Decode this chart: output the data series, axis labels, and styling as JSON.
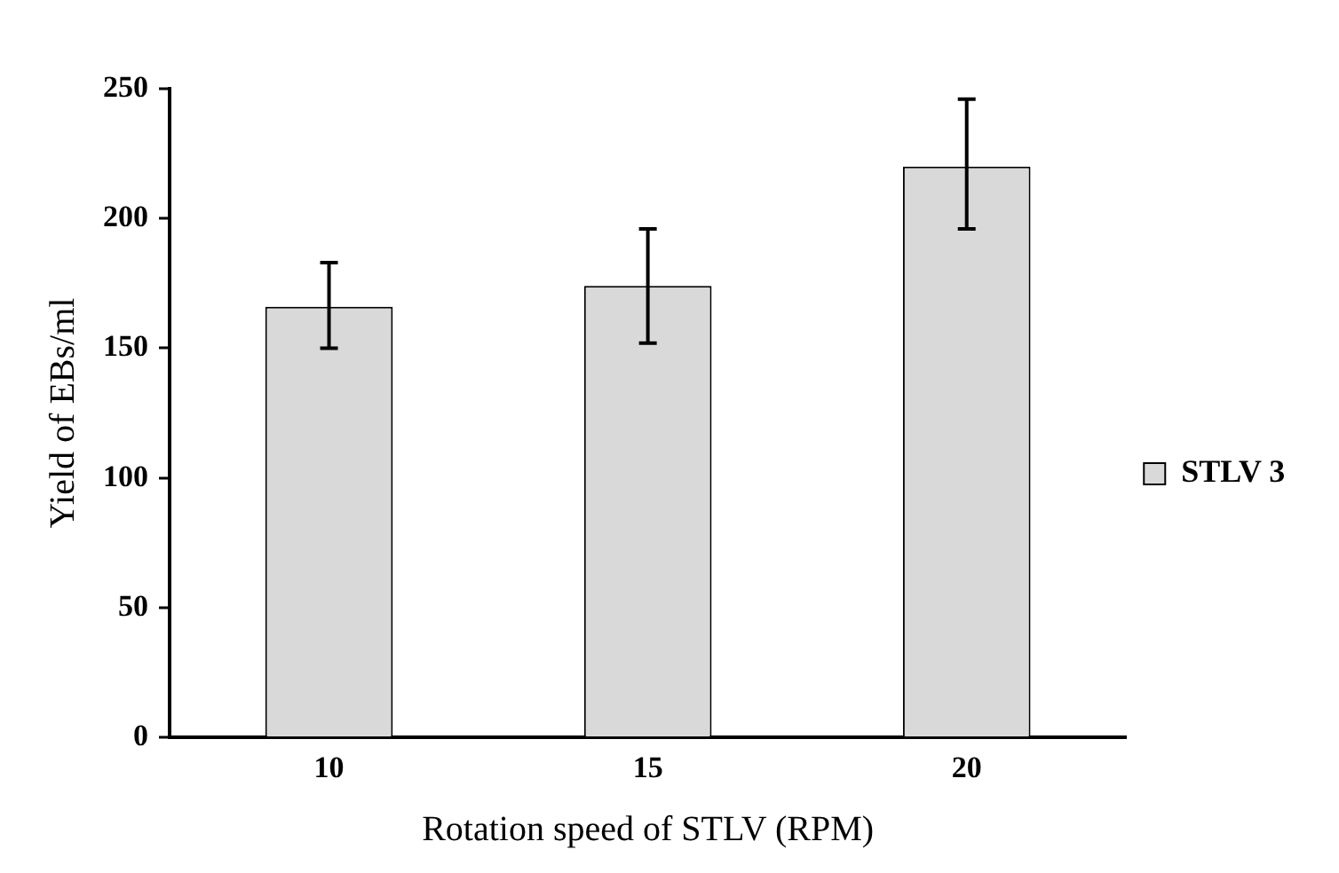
{
  "chart_data": {
    "type": "bar",
    "xlabel": "Rotation speed of STLV (RPM)",
    "ylabel": "Yield of EBs/ml",
    "categories": [
      "10",
      "15",
      "20"
    ],
    "series": [
      {
        "name": "STLV 3",
        "color": "#d9d9d9",
        "values": [
          166,
          174,
          220
        ],
        "errors": [
          [
            150,
            183
          ],
          [
            152,
            196
          ],
          [
            196,
            246
          ]
        ]
      }
    ],
    "ylim": [
      0,
      250
    ],
    "yticks": [
      0,
      50,
      100,
      150,
      200,
      250
    ],
    "grid": false,
    "legend": "right"
  }
}
